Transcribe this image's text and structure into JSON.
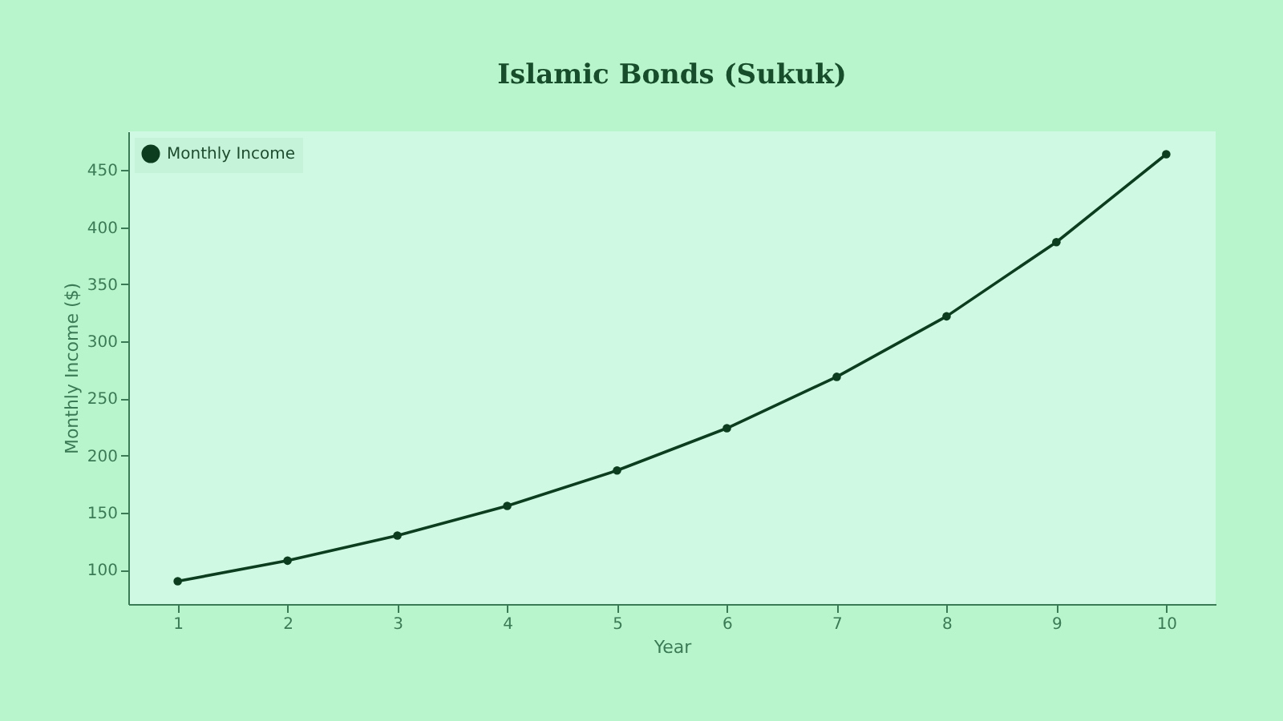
{
  "chart_data": {
    "type": "line",
    "title": "Islamic Bonds (Sukuk)",
    "xlabel": "Year",
    "ylabel": "Monthly Income ($)",
    "x": [
      1,
      2,
      3,
      4,
      5,
      6,
      7,
      8,
      9,
      10
    ],
    "series": [
      {
        "name": "Monthly Income",
        "color": "#0b3d1e",
        "values": [
          90,
          108,
          130,
          156,
          187,
          224,
          269,
          322,
          387,
          464
        ]
      }
    ],
    "xlim": [
      0.55,
      10.45
    ],
    "xticks": [
      1,
      2,
      3,
      4,
      5,
      6,
      7,
      8,
      9,
      10
    ],
    "ylim": [
      70,
      484
    ],
    "yticks": [
      100,
      150,
      200,
      250,
      300,
      350,
      400,
      450
    ],
    "grid": false,
    "legend": "top left",
    "marker": "circle",
    "line_style": "solid"
  }
}
